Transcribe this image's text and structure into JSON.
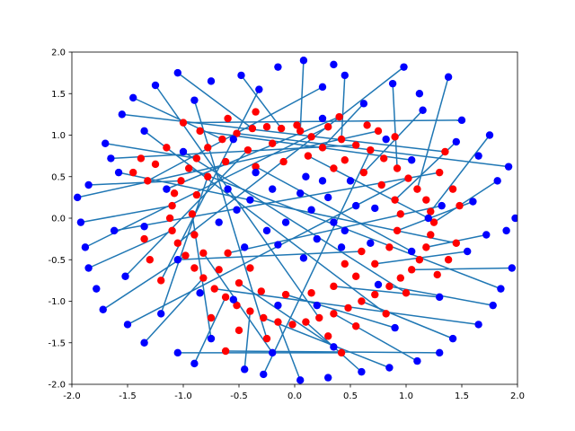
{
  "chart_data": {
    "type": "scatter",
    "title": "",
    "xlabel": "",
    "ylabel": "",
    "xlim": [
      -2,
      2
    ],
    "ylim": [
      -2,
      2
    ],
    "grid": false,
    "legend": "none",
    "x_ticks": [
      "-2.0",
      "-1.5",
      "-1.0",
      "-0.5",
      "0.0",
      "0.5",
      "1.0",
      "1.5",
      "2.0"
    ],
    "y_ticks": [
      "-2.0",
      "-1.5",
      "-1.0",
      "-0.5",
      "0.0",
      "0.5",
      "1.0",
      "1.5",
      "2.0"
    ],
    "colors": {
      "reference_points": "#ff0000",
      "shifted_points": "#0000ff",
      "connecting_lines": "#1f77b4"
    },
    "series": [
      {
        "marker": "circle",
        "color": "#ff0000",
        "points": [
          [
            0.05,
            1.05
          ],
          [
            0.15,
            0.98
          ],
          [
            0.3,
            1.1
          ],
          [
            0.42,
            0.95
          ],
          [
            0.55,
            0.88
          ],
          [
            0.68,
            0.82
          ],
          [
            0.8,
            0.72
          ],
          [
            0.92,
            0.6
          ],
          [
            1.02,
            0.48
          ],
          [
            1.1,
            0.35
          ],
          [
            1.18,
            0.22
          ],
          [
            1.22,
            0.08
          ],
          [
            1.25,
            -0.05
          ],
          [
            1.22,
            -0.2
          ],
          [
            1.18,
            -0.35
          ],
          [
            1.12,
            -0.5
          ],
          [
            1.05,
            -0.62
          ],
          [
            0.95,
            -0.72
          ],
          [
            0.85,
            -0.82
          ],
          [
            0.72,
            -0.92
          ],
          [
            0.6,
            -1.0
          ],
          [
            0.48,
            -1.08
          ],
          [
            0.35,
            -1.15
          ],
          [
            0.22,
            -1.2
          ],
          [
            0.1,
            -1.25
          ],
          [
            -0.02,
            -1.28
          ],
          [
            -0.15,
            -1.25
          ],
          [
            -0.28,
            -1.2
          ],
          [
            -0.4,
            -1.12
          ],
          [
            -0.52,
            -1.05
          ],
          [
            -0.62,
            -0.95
          ],
          [
            -0.72,
            -0.85
          ],
          [
            -0.82,
            -0.72
          ],
          [
            -0.9,
            -0.6
          ],
          [
            -0.98,
            -0.45
          ],
          [
            -1.05,
            -0.3
          ],
          [
            -1.1,
            -0.15
          ],
          [
            -1.12,
            0.0
          ],
          [
            -1.1,
            0.15
          ],
          [
            -1.08,
            0.3
          ],
          [
            -1.02,
            0.45
          ],
          [
            -0.95,
            0.6
          ],
          [
            -0.88,
            0.72
          ],
          [
            -0.78,
            0.85
          ],
          [
            -0.65,
            0.95
          ],
          [
            -0.52,
            1.02
          ],
          [
            -0.38,
            1.08
          ],
          [
            -0.25,
            1.1
          ],
          [
            -0.12,
            1.08
          ],
          [
            0.02,
            1.12
          ],
          [
            0.25,
            0.85
          ],
          [
            0.45,
            0.7
          ],
          [
            0.62,
            0.55
          ],
          [
            0.78,
            0.4
          ],
          [
            0.9,
            0.22
          ],
          [
            0.95,
            0.05
          ],
          [
            0.92,
            -0.15
          ],
          [
            0.85,
            -0.35
          ],
          [
            0.72,
            -0.55
          ],
          [
            0.55,
            -0.7
          ],
          [
            0.35,
            -0.82
          ],
          [
            0.15,
            -0.9
          ],
          [
            -0.08,
            -0.92
          ],
          [
            -0.3,
            -0.88
          ],
          [
            -0.5,
            -0.78
          ],
          [
            -0.68,
            -0.62
          ],
          [
            -0.82,
            -0.42
          ],
          [
            -0.9,
            -0.2
          ],
          [
            -0.92,
            0.05
          ],
          [
            -0.88,
            0.28
          ],
          [
            -0.78,
            0.5
          ],
          [
            -0.62,
            0.68
          ],
          [
            -0.42,
            0.82
          ],
          [
            -0.2,
            0.9
          ],
          [
            1.3,
            0.55
          ],
          [
            1.42,
            0.35
          ],
          [
            1.48,
            0.15
          ],
          [
            1.45,
            -0.3
          ],
          [
            1.38,
            -0.5
          ],
          [
            1.28,
            -0.68
          ],
          [
            0.82,
            -1.15
          ],
          [
            0.55,
            -1.3
          ],
          [
            0.3,
            -1.42
          ],
          [
            -0.25,
            -1.45
          ],
          [
            -0.5,
            -1.35
          ],
          [
            -0.75,
            -1.2
          ],
          [
            -1.2,
            -0.75
          ],
          [
            -1.3,
            -0.5
          ],
          [
            -1.35,
            -0.25
          ],
          [
            -1.32,
            0.45
          ],
          [
            -1.25,
            0.65
          ],
          [
            -1.15,
            0.85
          ],
          [
            -0.85,
            1.05
          ],
          [
            -0.6,
            1.2
          ],
          [
            -0.35,
            1.28
          ],
          [
            0.4,
            1.22
          ],
          [
            0.65,
            1.12
          ],
          [
            0.9,
            0.98
          ],
          [
            0.12,
            0.75
          ],
          [
            0.35,
            0.6
          ],
          [
            -0.1,
            0.68
          ],
          [
            -0.35,
            0.62
          ],
          [
            0.6,
            -0.4
          ],
          [
            0.45,
            -0.55
          ],
          [
            -0.4,
            -0.6
          ],
          [
            -0.6,
            -0.42
          ],
          [
            -1.38,
            0.72
          ],
          [
            -1.45,
            0.55
          ],
          [
            -0.62,
            -1.6
          ],
          [
            0.42,
            -1.62
          ],
          [
            1.0,
            -0.9
          ],
          [
            1.35,
            0.8
          ],
          [
            -1.0,
            1.15
          ],
          [
            0.75,
            1.05
          ]
        ]
      },
      {
        "marker": "circle",
        "color": "#0000ff",
        "points": [
          [
            0.08,
            1.9
          ],
          [
            0.45,
            1.72
          ],
          [
            0.88,
            1.62
          ],
          [
            1.38,
            1.7
          ],
          [
            1.75,
            1.0
          ],
          [
            1.82,
            0.45
          ],
          [
            1.72,
            -0.2
          ],
          [
            1.95,
            -0.6
          ],
          [
            1.78,
            -1.05
          ],
          [
            1.42,
            -1.45
          ],
          [
            1.1,
            -1.72
          ],
          [
            0.6,
            -1.85
          ],
          [
            0.05,
            -1.95
          ],
          [
            -0.45,
            -1.82
          ],
          [
            -0.9,
            -1.75
          ],
          [
            -1.35,
            -1.5
          ],
          [
            -1.72,
            -1.1
          ],
          [
            -1.85,
            -0.6
          ],
          [
            -1.92,
            -0.05
          ],
          [
            -1.85,
            0.4
          ],
          [
            -1.7,
            0.9
          ],
          [
            -1.45,
            1.45
          ],
          [
            -1.05,
            1.75
          ],
          [
            -0.48,
            1.72
          ],
          [
            0.3,
            0.25
          ],
          [
            -0.2,
            0.35
          ],
          [
            0.2,
            -0.25
          ],
          [
            -0.25,
            -0.15
          ],
          [
            0.55,
            0.15
          ],
          [
            -0.52,
            0.1
          ],
          [
            0.1,
            0.5
          ],
          [
            0.08,
            -0.48
          ],
          [
            0.62,
            1.38
          ],
          [
            1.15,
            1.3
          ],
          [
            1.45,
            0.92
          ],
          [
            1.6,
            0.2
          ],
          [
            1.55,
            -0.4
          ],
          [
            1.3,
            -0.95
          ],
          [
            0.9,
            -1.32
          ],
          [
            0.35,
            -1.55
          ],
          [
            -0.2,
            -1.62
          ],
          [
            -0.75,
            -1.45
          ],
          [
            -1.2,
            -1.15
          ],
          [
            -1.52,
            -0.7
          ],
          [
            -1.62,
            -0.15
          ],
          [
            -1.58,
            0.55
          ],
          [
            -1.35,
            1.05
          ],
          [
            -0.9,
            1.42
          ],
          [
            -0.32,
            1.55
          ],
          [
            0.25,
            1.58
          ],
          [
            0.5,
            0.45
          ],
          [
            0.72,
            0.12
          ],
          [
            0.68,
            -0.3
          ],
          [
            0.42,
            -0.35
          ],
          [
            -0.45,
            -0.35
          ],
          [
            -0.68,
            -0.05
          ],
          [
            -0.6,
            0.35
          ],
          [
            -0.35,
            0.55
          ],
          [
            1.05,
            0.7
          ],
          [
            1.2,
            0.0
          ],
          [
            1.05,
            -0.4
          ],
          [
            0.2,
            -1.05
          ],
          [
            -0.55,
            -0.98
          ],
          [
            -1.05,
            -0.5
          ],
          [
            -1.15,
            0.35
          ],
          [
            -0.55,
            0.95
          ],
          [
            0.25,
            1.2
          ],
          [
            0.82,
            0.95
          ],
          [
            1.32,
            0.15
          ],
          [
            0.75,
            -0.8
          ],
          [
            -0.15,
            -1.05
          ],
          [
            -0.85,
            -0.9
          ],
          [
            -1.35,
            -0.1
          ],
          [
            -1.0,
            0.8
          ],
          [
            1.9,
            -0.15
          ],
          [
            1.98,
            0.0
          ],
          [
            1.5,
            1.18
          ],
          [
            1.12,
            1.5
          ],
          [
            0.35,
            1.85
          ],
          [
            -0.15,
            1.82
          ],
          [
            -0.75,
            1.65
          ],
          [
            -1.55,
            1.25
          ],
          [
            -1.95,
            0.25
          ],
          [
            -1.88,
            -0.35
          ],
          [
            -1.78,
            -0.85
          ],
          [
            -1.5,
            -1.28
          ],
          [
            -1.05,
            -1.62
          ],
          [
            -0.28,
            -1.88
          ],
          [
            0.3,
            -1.92
          ],
          [
            0.85,
            -1.8
          ],
          [
            1.3,
            -1.62
          ],
          [
            1.65,
            -1.28
          ],
          [
            1.85,
            -0.85
          ],
          [
            1.92,
            0.62
          ],
          [
            1.65,
            0.75
          ],
          [
            0.98,
            1.82
          ],
          [
            -1.25,
            1.6
          ],
          [
            -1.65,
            0.72
          ],
          [
            0.15,
            0.1
          ],
          [
            -0.08,
            -0.05
          ],
          [
            0.35,
            -0.05
          ],
          [
            -0.4,
            0.22
          ],
          [
            0.05,
            0.3
          ],
          [
            0.45,
            -0.15
          ],
          [
            -0.15,
            -0.32
          ],
          [
            0.25,
            0.45
          ]
        ]
      }
    ],
    "links": [
      [
        0.05,
        1.05,
        0.08,
        1.9
      ],
      [
        0.42,
        0.95,
        0.45,
        1.72
      ],
      [
        0.92,
        0.6,
        0.88,
        1.62
      ],
      [
        1.1,
        0.35,
        1.38,
        1.7
      ],
      [
        1.22,
        0.08,
        1.75,
        1.0
      ],
      [
        1.25,
        -0.05,
        1.82,
        0.45
      ],
      [
        1.18,
        -0.35,
        1.72,
        -0.2
      ],
      [
        1.05,
        -0.62,
        1.95,
        -0.6
      ],
      [
        0.85,
        -0.82,
        1.78,
        -1.05
      ],
      [
        0.6,
        -1.0,
        1.42,
        -1.45
      ],
      [
        0.35,
        -1.15,
        1.1,
        -1.72
      ],
      [
        0.1,
        -1.25,
        0.6,
        -1.85
      ],
      [
        -0.15,
        -1.25,
        0.05,
        -1.95
      ],
      [
        -0.4,
        -1.12,
        -0.45,
        -1.82
      ],
      [
        -0.62,
        -0.95,
        -0.9,
        -1.75
      ],
      [
        -0.82,
        -0.72,
        -1.35,
        -1.5
      ],
      [
        -0.98,
        -0.45,
        -1.72,
        -1.1
      ],
      [
        -1.1,
        -0.15,
        -1.85,
        -0.6
      ],
      [
        -1.1,
        0.15,
        -1.92,
        -0.05
      ],
      [
        -1.02,
        0.45,
        -1.85,
        0.4
      ],
      [
        -0.88,
        0.72,
        -1.7,
        0.9
      ],
      [
        -0.65,
        0.95,
        -1.45,
        1.45
      ],
      [
        -0.38,
        1.08,
        -1.05,
        1.75
      ],
      [
        -0.12,
        1.08,
        -0.48,
        1.72
      ],
      [
        0.25,
        0.85,
        0.62,
        1.38
      ],
      [
        0.62,
        0.55,
        1.15,
        1.3
      ],
      [
        0.9,
        0.22,
        1.45,
        0.92
      ],
      [
        0.92,
        -0.15,
        1.6,
        0.2
      ],
      [
        0.72,
        -0.55,
        1.55,
        -0.4
      ],
      [
        0.35,
        -0.82,
        1.3,
        -0.95
      ],
      [
        -0.08,
        -0.92,
        0.9,
        -1.32
      ],
      [
        -0.5,
        -0.78,
        0.35,
        -1.55
      ],
      [
        -0.82,
        -0.42,
        -0.2,
        -1.62
      ],
      [
        -0.92,
        0.05,
        -0.75,
        -1.45
      ],
      [
        -0.78,
        0.5,
        -1.2,
        -1.15
      ],
      [
        -0.42,
        0.82,
        -1.52,
        -0.7
      ],
      [
        1.3,
        0.55,
        -1.62,
        -0.15
      ],
      [
        1.45,
        -0.3,
        -1.58,
        0.55
      ],
      [
        0.82,
        -1.15,
        -1.35,
        1.05
      ],
      [
        -0.25,
        -1.45,
        -0.9,
        1.42
      ],
      [
        -1.2,
        -0.75,
        -0.32,
        1.55
      ],
      [
        -1.32,
        0.45,
        0.25,
        1.58
      ],
      [
        -0.85,
        1.05,
        1.05,
        0.7
      ],
      [
        0.4,
        1.22,
        -1.15,
        0.35
      ],
      [
        0.12,
        0.75,
        1.2,
        0.0
      ],
      [
        -0.35,
        0.62,
        1.05,
        -0.4
      ],
      [
        0.6,
        -0.4,
        -1.05,
        -0.5
      ],
      [
        -0.6,
        -0.42,
        1.32,
        0.15
      ],
      [
        1.0,
        -0.9,
        -1.0,
        0.8
      ],
      [
        -1.0,
        1.15,
        1.5,
        1.18
      ],
      [
        1.35,
        0.8,
        -1.55,
        1.25
      ],
      [
        0.75,
        1.05,
        -1.95,
        0.25
      ],
      [
        -0.62,
        -1.6,
        1.3,
        -1.62
      ],
      [
        0.42,
        -1.62,
        -1.05,
        -1.62
      ],
      [
        0.3,
        1.1,
        -1.88,
        -0.35
      ],
      [
        -0.52,
        1.02,
        1.92,
        0.62
      ],
      [
        1.02,
        0.48,
        -1.5,
        -1.28
      ],
      [
        -1.05,
        -0.3,
        0.98,
        1.82
      ],
      [
        0.22,
        -1.2,
        -1.25,
        1.6
      ],
      [
        -0.72,
        -0.85,
        1.65,
        -1.28
      ],
      [
        0.68,
        0.82,
        -0.28,
        -1.88
      ],
      [
        -0.28,
        -1.2,
        0.85,
        -1.8
      ],
      [
        0.55,
        0.88,
        -1.65,
        0.72
      ],
      [
        -0.95,
        0.6,
        1.85,
        -0.85
      ]
    ]
  }
}
